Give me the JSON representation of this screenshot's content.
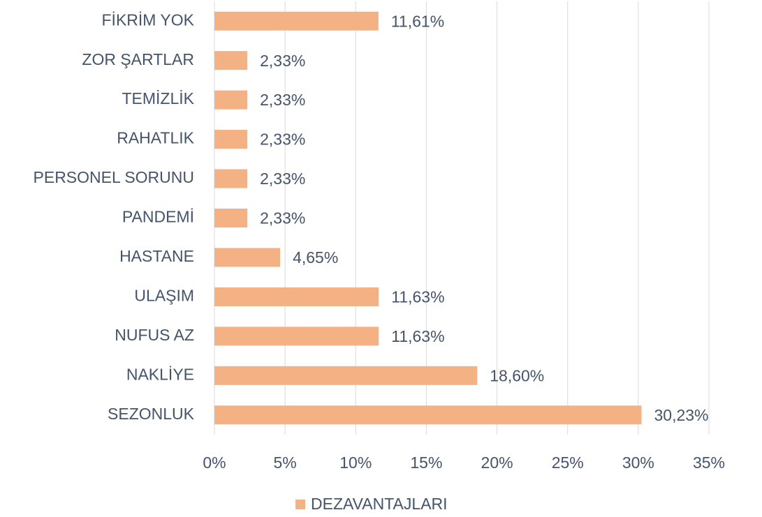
{
  "chart_data": {
    "type": "hbar",
    "categories": [
      "FİKRİM YOK",
      "ZOR ŞARTLAR",
      "TEMİZLİK",
      "RAHATLIK",
      "PERSONEL SORUNU",
      "PANDEMİ",
      "HASTANE",
      "ULAŞIM",
      "NUFUS AZ",
      "NAKLİYE",
      "SEZONLUK"
    ],
    "series": [
      {
        "name": "DEZAVANTAJLARI",
        "color": "#f4b183",
        "values": [
          11.61,
          2.33,
          2.33,
          2.33,
          2.33,
          2.33,
          4.65,
          11.63,
          11.63,
          18.6,
          30.23
        ],
        "value_labels": [
          "11,61%",
          "2,33%",
          "2,33%",
          "2,33%",
          "2,33%",
          "2,33%",
          "4,65%",
          "11,63%",
          "11,63%",
          "18,60%",
          "30,23%"
        ]
      }
    ],
    "xlim": [
      0,
      35
    ],
    "xticks": [
      {
        "value": 0,
        "label": "0%"
      },
      {
        "value": 5,
        "label": "5%"
      },
      {
        "value": 10,
        "label": "10%"
      },
      {
        "value": 15,
        "label": "15%"
      },
      {
        "value": 20,
        "label": "20%"
      },
      {
        "value": 25,
        "label": "25%"
      },
      {
        "value": 30,
        "label": "30%"
      },
      {
        "value": 35,
        "label": "35%"
      }
    ],
    "grid": true,
    "legend": "bottom"
  }
}
